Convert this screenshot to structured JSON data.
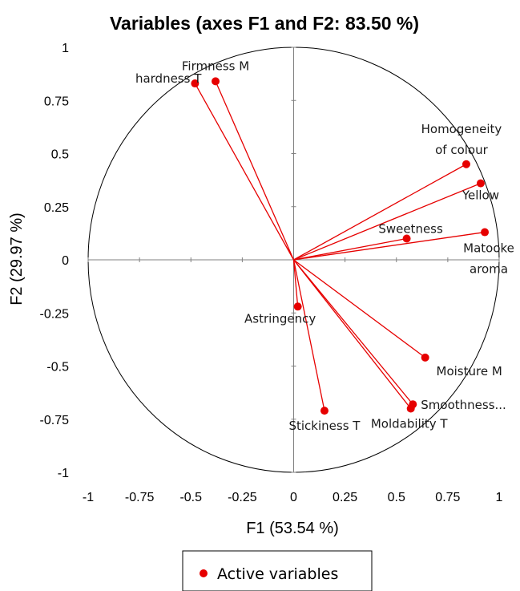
{
  "chart_data": {
    "type": "scatter",
    "title": "Variables (axes F1 and F2: 83.50 %)",
    "xlabel": "F1 (53.54 %)",
    "ylabel": "F2 (29.97 %)",
    "xlim": [
      -1,
      1
    ],
    "ylim": [
      -1,
      1
    ],
    "x_ticks": [
      "-1",
      "-0.75",
      "-0.5",
      "-0.25",
      "0",
      "0.25",
      "0.5",
      "0.75",
      "1"
    ],
    "y_ticks": [
      "1",
      "0.75",
      "0.5",
      "0.25",
      "0",
      "-0.25",
      "-0.5",
      "-0.75",
      "-1"
    ],
    "grid": false,
    "correlation_circle": true,
    "color": "#e60000",
    "legend": {
      "position": "bottom",
      "label": "Active variables"
    },
    "points": [
      {
        "label": [
          "Firmness M"
        ],
        "x": -0.38,
        "y": 0.84
      },
      {
        "label": [
          "hardness T"
        ],
        "x": -0.48,
        "y": 0.83
      },
      {
        "label": [
          "Homogeneity",
          "of colour"
        ],
        "x": 0.84,
        "y": 0.45
      },
      {
        "label": [
          "Yellow"
        ],
        "x": 0.91,
        "y": 0.36
      },
      {
        "label": [
          "Sweetness"
        ],
        "x": 0.55,
        "y": 0.1
      },
      {
        "label": [
          "Matooke",
          "aroma"
        ],
        "x": 0.93,
        "y": 0.13
      },
      {
        "label": [
          "Astringency"
        ],
        "x": 0.02,
        "y": -0.22
      },
      {
        "label": [
          "Moisture M"
        ],
        "x": 0.64,
        "y": -0.46
      },
      {
        "label": [
          "Smoothness..."
        ],
        "x": 0.58,
        "y": -0.68
      },
      {
        "label": [
          "Moldability T"
        ],
        "x": 0.57,
        "y": -0.7
      },
      {
        "label": [
          "Stickiness T"
        ],
        "x": 0.15,
        "y": -0.71
      }
    ]
  }
}
